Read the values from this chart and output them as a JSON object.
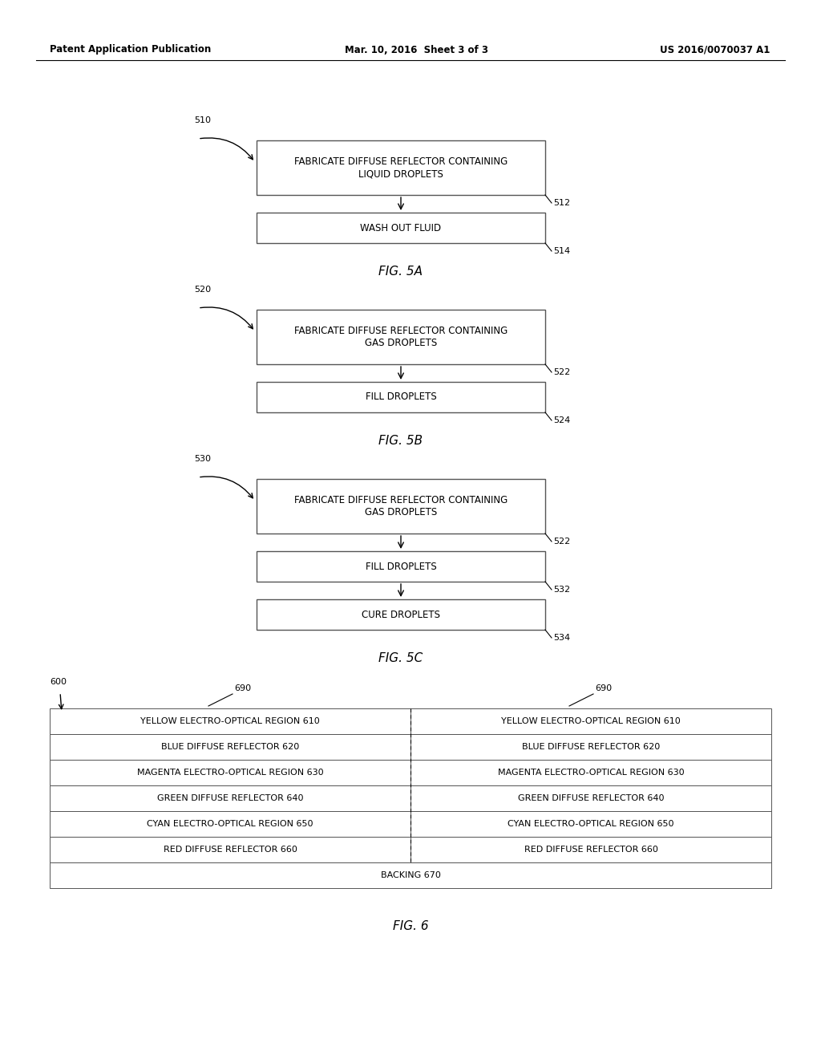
{
  "bg_color": "#ffffff",
  "header_left": "Patent Application Publication",
  "header_mid": "Mar. 10, 2016  Sheet 3 of 3",
  "header_right": "US 2016/0070037 A1",
  "fig5a": {
    "label": "510",
    "box1_text": "FABRICATE DIFFUSE REFLECTOR CONTAINING\nLIQUID DROPLETS",
    "box1_num": "512",
    "box2_text": "WASH OUT FLUID",
    "box2_num": "514",
    "caption": "FIG. 5A"
  },
  "fig5b": {
    "label": "520",
    "box1_text": "FABRICATE DIFFUSE REFLECTOR CONTAINING\nGAS DROPLETS",
    "box1_num": "522",
    "box2_text": "FILL DROPLETS",
    "box2_num": "524",
    "caption": "FIG. 5B"
  },
  "fig5c": {
    "label": "530",
    "box1_text": "FABRICATE DIFFUSE REFLECTOR CONTAINING\nGAS DROPLETS",
    "box1_num": "522",
    "box2_text": "FILL DROPLETS",
    "box2_num": "532",
    "box3_text": "CURE DROPLETS",
    "box3_num": "534",
    "caption": "FIG. 5C"
  },
  "fig6": {
    "label": "600",
    "col_label": "690",
    "rows_left": [
      [
        "YELLOW ELECTRO-OPTICAL REGION ",
        "610"
      ],
      [
        "BLUE DIFFUSE REFLECTOR ",
        "620"
      ],
      [
        "MAGENTA ELECTRO-OPTICAL REGION ",
        "630"
      ],
      [
        "GREEN DIFFUSE REFLECTOR ",
        "640"
      ],
      [
        "CYAN ELECTRO-OPTICAL REGION ",
        "650"
      ],
      [
        "RED DIFFUSE REFLECTOR ",
        "660"
      ]
    ],
    "rows_right": [
      [
        "YELLOW ELECTRO-OPTICAL REGION ",
        "610"
      ],
      [
        "BLUE DIFFUSE REFLECTOR ",
        "620"
      ],
      [
        "MAGENTA ELECTRO-OPTICAL REGION ",
        "630"
      ],
      [
        "GREEN DIFFUSE REFLECTOR ",
        "640"
      ],
      [
        "CYAN ELECTRO-OPTICAL REGION ",
        "650"
      ],
      [
        "RED DIFFUSE REFLECTOR ",
        "660"
      ]
    ],
    "backing_text": "BACKING ",
    "backing_num": "670",
    "caption": "FIG. 6"
  }
}
